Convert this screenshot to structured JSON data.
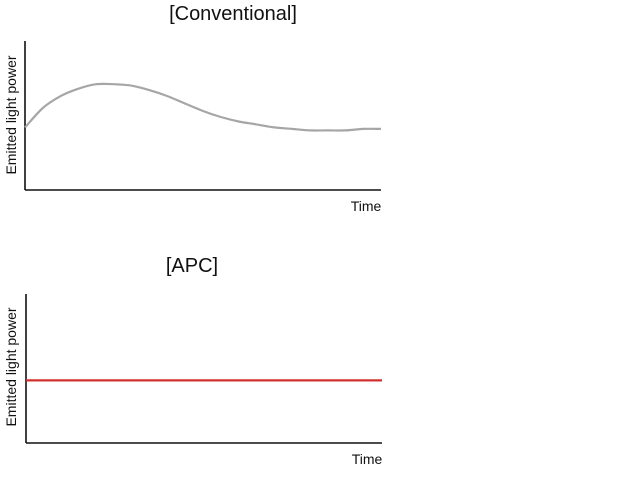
{
  "chart_data": [
    {
      "type": "line",
      "title": "[Conventional]",
      "xlabel": "Time",
      "ylabel": "Emitted light power",
      "xlim": [
        0,
        1
      ],
      "ylim": [
        0,
        1
      ],
      "grid": false,
      "ticks": false,
      "series": [
        {
          "color": "#a6a6a6",
          "x": [
            0,
            0.05,
            0.1,
            0.15,
            0.2,
            0.25,
            0.3,
            0.35,
            0.4,
            0.45,
            0.5,
            0.55,
            0.6,
            0.65,
            0.7,
            0.75,
            0.8,
            0.85,
            0.9,
            0.95,
            1
          ],
          "y": [
            0.42,
            0.55,
            0.63,
            0.68,
            0.71,
            0.71,
            0.7,
            0.67,
            0.63,
            0.58,
            0.53,
            0.49,
            0.46,
            0.44,
            0.42,
            0.41,
            0.4,
            0.4,
            0.4,
            0.41,
            0.41
          ]
        }
      ]
    },
    {
      "type": "line",
      "title": "[APC]",
      "xlabel": "Time",
      "ylabel": "Emitted light power",
      "xlim": [
        0,
        1
      ],
      "ylim": [
        0,
        1
      ],
      "grid": false,
      "ticks": false,
      "series": [
        {
          "color": "#d0312d",
          "x": [
            0,
            1
          ],
          "y": [
            0.42,
            0.42
          ]
        }
      ]
    }
  ]
}
